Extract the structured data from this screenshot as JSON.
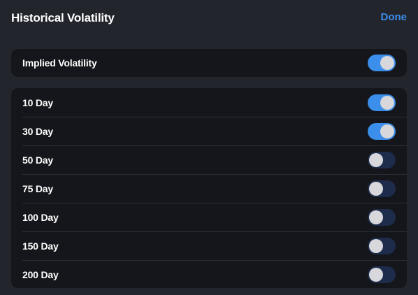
{
  "header": {
    "title": "Historical Volatility",
    "done_label": "Done"
  },
  "colors": {
    "accent": "#3b8eea",
    "toggle_on": "#3b8eea",
    "toggle_off": "#1d2c4a",
    "card_bg": "#15161b",
    "page_bg": "#23252d"
  },
  "implied": {
    "label": "Implied Volatility",
    "enabled": true
  },
  "periods": [
    {
      "label": "10 Day",
      "enabled": true
    },
    {
      "label": "30 Day",
      "enabled": true
    },
    {
      "label": "50 Day",
      "enabled": false
    },
    {
      "label": "75 Day",
      "enabled": false
    },
    {
      "label": "100 Day",
      "enabled": false
    },
    {
      "label": "150 Day",
      "enabled": false
    },
    {
      "label": "200 Day",
      "enabled": false
    }
  ]
}
